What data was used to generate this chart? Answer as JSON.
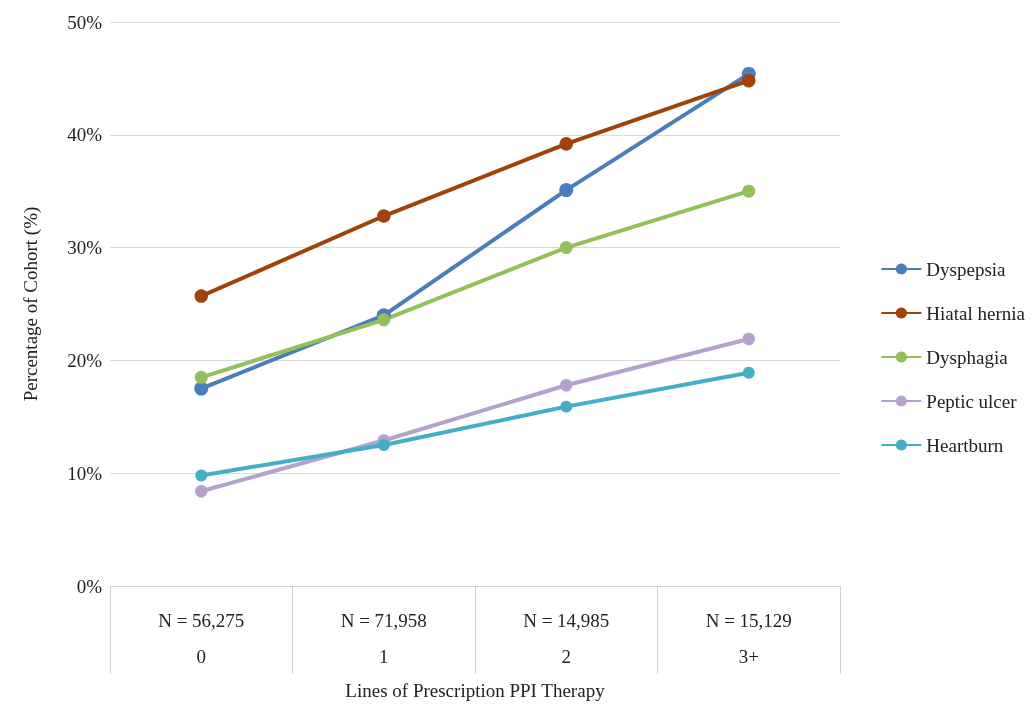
{
  "chart_data": {
    "type": "line",
    "xlabel": "Lines of Prescription PPI Therapy",
    "ylabel": "Percentage of Cohort (%)",
    "categories": [
      "N = 56,275\n0",
      "N = 71,958\n1",
      "N = 14,985\n2",
      "N = 15,129\n3+"
    ],
    "series": [
      {
        "name": "Dyspepsia",
        "color": "#4a7ebb",
        "values": [
          17.5,
          24.0,
          35.1,
          45.4
        ]
      },
      {
        "name": "Hiatal hernia",
        "color": "#a0430a",
        "values": [
          25.7,
          32.8,
          39.2,
          44.8
        ]
      },
      {
        "name": "Dysphagia",
        "color": "#93c05a",
        "values": [
          18.5,
          23.6,
          30.0,
          35.0
        ]
      },
      {
        "name": "Peptic ulcer",
        "color": "#b3a2cc",
        "values": [
          8.4,
          12.9,
          17.8,
          21.9
        ]
      },
      {
        "name": "Heartburn",
        "color": "#44aec6",
        "values": [
          9.8,
          12.5,
          15.9,
          18.9
        ]
      }
    ],
    "ylim": [
      0,
      50
    ],
    "yticks": [
      {
        "value": 0,
        "label": "0%"
      },
      {
        "value": 10,
        "label": "10%"
      },
      {
        "value": 20,
        "label": "20%"
      },
      {
        "value": 30,
        "label": "30%"
      },
      {
        "value": 40,
        "label": "40%"
      },
      {
        "value": 50,
        "label": "50%"
      }
    ],
    "grid": "y",
    "legend": "right",
    "marker": "circle",
    "line_style": "solid"
  }
}
